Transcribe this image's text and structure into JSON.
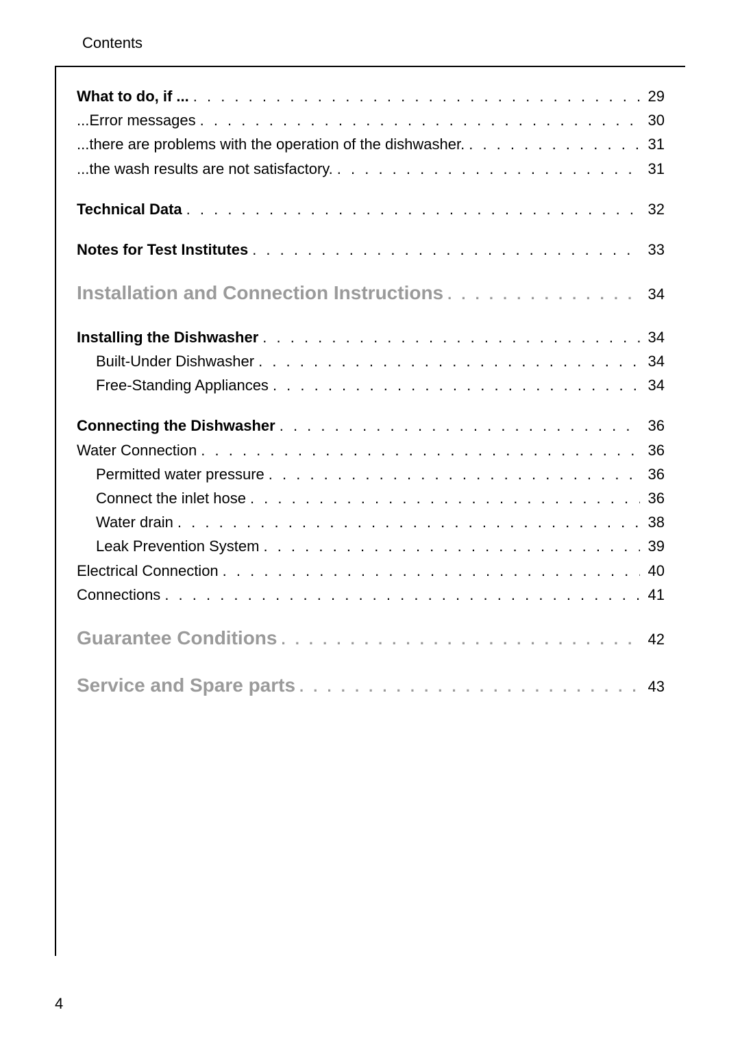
{
  "header": "Contents",
  "pageNumber": "4",
  "dots": ". . . . . . . . . . . . . . . . . . . . . . . . . . . . . . . . . . . . . . . . . . . . . . . . . . . . . . . . . . . . . . . . . . . . . . . . . . . . . . . . . . . . . . . . . . . . . . . . . . . . . . . . . . . . . . . . . . . . . . . . . . . .",
  "toc": [
    {
      "group": true,
      "items": [
        {
          "label": "What to do, if ...",
          "page": "29",
          "style": "bold",
          "indent": 0
        },
        {
          "label": "...Error messages",
          "page": "30",
          "style": "",
          "indent": 0
        },
        {
          "label": "...there are problems with the operation of the dishwasher.",
          "page": "31",
          "style": "",
          "indent": 0
        },
        {
          "label": "...the wash results are not satisfactory.",
          "page": "31",
          "style": "",
          "indent": 0
        }
      ]
    },
    {
      "group": true,
      "items": [
        {
          "label": "Technical Data",
          "page": "32",
          "style": "bold",
          "indent": 0
        }
      ]
    },
    {
      "group": true,
      "items": [
        {
          "label": "Notes for Test Institutes",
          "page": "33",
          "style": "bold",
          "indent": 0
        }
      ]
    },
    {
      "group": true,
      "items": [
        {
          "label": "Installation and Connection Instructions",
          "page": "34",
          "style": "section",
          "indent": 0
        }
      ]
    },
    {
      "group": true,
      "items": [
        {
          "label": "Installing the Dishwasher",
          "page": "34",
          "style": "bold",
          "indent": 0
        },
        {
          "label": "Built-Under Dishwasher",
          "page": "34",
          "style": "",
          "indent": 1
        },
        {
          "label": "Free-Standing Appliances",
          "page": "34",
          "style": "",
          "indent": 1
        }
      ]
    },
    {
      "group": true,
      "items": [
        {
          "label": "Connecting the Dishwasher",
          "page": "36",
          "style": "bold",
          "indent": 0
        },
        {
          "label": "Water Connection",
          "page": "36",
          "style": "",
          "indent": 0
        },
        {
          "label": "Permitted water pressure",
          "page": "36",
          "style": "",
          "indent": 1
        },
        {
          "label": "Connect the inlet hose",
          "page": "36",
          "style": "",
          "indent": 1
        },
        {
          "label": "Water drain",
          "page": "38",
          "style": "",
          "indent": 1
        },
        {
          "label": "Leak Prevention System",
          "page": "39",
          "style": "",
          "indent": 1
        },
        {
          "label": "Electrical Connection",
          "page": "40",
          "style": "",
          "indent": 0
        },
        {
          "label": "Connections",
          "page": "41",
          "style": "",
          "indent": 0
        }
      ]
    },
    {
      "group": true,
      "items": [
        {
          "label": "Guarantee Conditions",
          "page": "42",
          "style": "section",
          "indent": 0
        }
      ]
    },
    {
      "group": true,
      "items": [
        {
          "label": "Service and Spare parts",
          "page": "43",
          "style": "section",
          "indent": 0
        }
      ]
    }
  ]
}
